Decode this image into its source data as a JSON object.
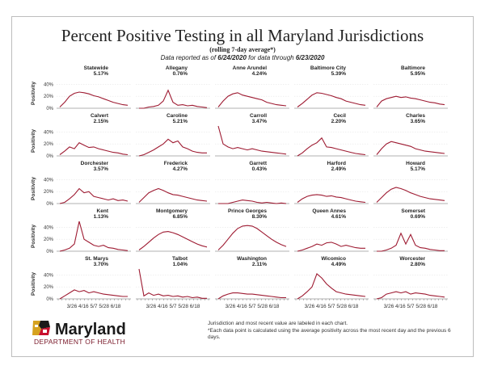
{
  "title": "Percent Positive Testing in all Maryland Jurisdictions",
  "subtitle": "(rolling 7-day average*)",
  "reported_prefix": "Data reported as of ",
  "reported_date": "6/24/2020",
  "reported_mid": " for data through ",
  "through_date": "6/23/2020",
  "y_axis_label": "Positivity",
  "y_ticks": [
    "0%",
    "20%",
    "40%"
  ],
  "x_ticks": [
    "3/26",
    "4/16",
    "5/7",
    "5/28",
    "6/18"
  ],
  "logo_text": "Maryland",
  "department": "DEPARTMENT OF HEALTH",
  "note_1": "Jurisdiction and most recent value are labeled in each chart.",
  "note_2": "*Each data point is calculated using the average positivity across the most recent day and the previous 6 days.",
  "colors": {
    "line": "#9e1b32",
    "grid": "#e6e6e6",
    "axis": "#555555"
  },
  "chart_data": {
    "type": "line",
    "layout": "small-multiples",
    "ylim": [
      0,
      0.5
    ],
    "x_range": [
      "3/19/2020",
      "6/23/2020"
    ],
    "panels": [
      {
        "name": "Statewide",
        "value": "5.17%",
        "series": [
          0.02,
          0.1,
          0.2,
          0.25,
          0.27,
          0.26,
          0.24,
          0.21,
          0.19,
          0.16,
          0.13,
          0.1,
          0.08,
          0.06,
          0.05
        ]
      },
      {
        "name": "Allegany",
        "value": "0.76%",
        "series": [
          0.0,
          0.0,
          0.02,
          0.03,
          0.05,
          0.12,
          0.3,
          0.1,
          0.05,
          0.06,
          0.04,
          0.05,
          0.03,
          0.02,
          0.01
        ]
      },
      {
        "name": "Anne Arundel",
        "value": "4.24%",
        "series": [
          0.02,
          0.12,
          0.2,
          0.24,
          0.26,
          0.22,
          0.2,
          0.18,
          0.16,
          0.14,
          0.1,
          0.08,
          0.06,
          0.05,
          0.04
        ]
      },
      {
        "name": "Baltimore City",
        "value": "5.39%",
        "series": [
          0.02,
          0.08,
          0.15,
          0.22,
          0.26,
          0.25,
          0.23,
          0.21,
          0.18,
          0.16,
          0.12,
          0.1,
          0.08,
          0.06,
          0.05
        ]
      },
      {
        "name": "Baltimore",
        "value": "5.95%",
        "series": [
          0.02,
          0.12,
          0.16,
          0.18,
          0.2,
          0.18,
          0.19,
          0.17,
          0.16,
          0.14,
          0.12,
          0.1,
          0.09,
          0.07,
          0.06
        ]
      },
      {
        "name": "Calvert",
        "value": "2.15%",
        "series": [
          0.02,
          0.08,
          0.15,
          0.12,
          0.22,
          0.18,
          0.14,
          0.15,
          0.12,
          0.1,
          0.08,
          0.06,
          0.05,
          0.03,
          0.02
        ]
      },
      {
        "name": "Caroline",
        "value": "5.21%",
        "series": [
          0.0,
          0.02,
          0.06,
          0.1,
          0.15,
          0.2,
          0.28,
          0.22,
          0.25,
          0.15,
          0.12,
          0.08,
          0.06,
          0.05,
          0.05
        ]
      },
      {
        "name": "Carroll",
        "value": "3.47%",
        "series": [
          0.55,
          0.2,
          0.15,
          0.12,
          0.14,
          0.12,
          0.1,
          0.12,
          0.1,
          0.08,
          0.07,
          0.06,
          0.05,
          0.04,
          0.03
        ]
      },
      {
        "name": "Cecil",
        "value": "2.20%",
        "series": [
          0.0,
          0.05,
          0.12,
          0.18,
          0.22,
          0.3,
          0.15,
          0.14,
          0.12,
          0.1,
          0.08,
          0.06,
          0.04,
          0.03,
          0.02
        ]
      },
      {
        "name": "Charles",
        "value": "3.65%",
        "series": [
          0.02,
          0.12,
          0.2,
          0.24,
          0.22,
          0.2,
          0.18,
          0.16,
          0.12,
          0.1,
          0.08,
          0.07,
          0.06,
          0.05,
          0.04
        ]
      },
      {
        "name": "Dorchester",
        "value": "3.57%",
        "series": [
          0.0,
          0.02,
          0.08,
          0.15,
          0.25,
          0.18,
          0.2,
          0.12,
          0.1,
          0.08,
          0.06,
          0.08,
          0.05,
          0.06,
          0.04
        ]
      },
      {
        "name": "Frederick",
        "value": "4.27%",
        "series": [
          0.02,
          0.1,
          0.18,
          0.22,
          0.25,
          0.22,
          0.18,
          0.15,
          0.14,
          0.12,
          0.1,
          0.08,
          0.06,
          0.05,
          0.04
        ]
      },
      {
        "name": "Garrett",
        "value": "0.43%",
        "series": [
          0.0,
          0.0,
          0.0,
          0.02,
          0.04,
          0.06,
          0.05,
          0.04,
          0.02,
          0.01,
          0.02,
          0.01,
          0.0,
          0.01,
          0.0
        ]
      },
      {
        "name": "Harford",
        "value": "2.49%",
        "series": [
          0.02,
          0.08,
          0.12,
          0.14,
          0.15,
          0.14,
          0.12,
          0.13,
          0.11,
          0.1,
          0.08,
          0.06,
          0.04,
          0.03,
          0.02
        ]
      },
      {
        "name": "Howard",
        "value": "5.17%",
        "series": [
          0.02,
          0.1,
          0.18,
          0.24,
          0.27,
          0.25,
          0.22,
          0.18,
          0.15,
          0.12,
          0.1,
          0.08,
          0.07,
          0.06,
          0.05
        ]
      },
      {
        "name": "Kent",
        "value": "1.13%",
        "series": [
          0.0,
          0.02,
          0.05,
          0.12,
          0.5,
          0.2,
          0.15,
          0.1,
          0.08,
          0.1,
          0.06,
          0.05,
          0.03,
          0.02,
          0.01
        ]
      },
      {
        "name": "Montgomery",
        "value": "6.85%",
        "series": [
          0.02,
          0.08,
          0.15,
          0.22,
          0.28,
          0.32,
          0.33,
          0.31,
          0.28,
          0.24,
          0.2,
          0.16,
          0.12,
          0.09,
          0.07
        ]
      },
      {
        "name": "Prince Georges",
        "value": "8.30%",
        "series": [
          0.02,
          0.1,
          0.2,
          0.3,
          0.38,
          0.42,
          0.43,
          0.42,
          0.38,
          0.32,
          0.26,
          0.2,
          0.15,
          0.11,
          0.08
        ]
      },
      {
        "name": "Queen Annes",
        "value": "4.61%",
        "series": [
          0.0,
          0.02,
          0.05,
          0.08,
          0.12,
          0.1,
          0.14,
          0.15,
          0.12,
          0.08,
          0.1,
          0.08,
          0.06,
          0.05,
          0.05
        ]
      },
      {
        "name": "Somerset",
        "value": "0.69%",
        "series": [
          0.0,
          0.0,
          0.02,
          0.05,
          0.1,
          0.3,
          0.12,
          0.28,
          0.1,
          0.06,
          0.05,
          0.03,
          0.02,
          0.01,
          0.01
        ]
      },
      {
        "name": "St. Marys",
        "value": "3.70%",
        "series": [
          0.0,
          0.05,
          0.1,
          0.15,
          0.12,
          0.14,
          0.1,
          0.12,
          0.1,
          0.08,
          0.07,
          0.06,
          0.05,
          0.04,
          0.04
        ]
      },
      {
        "name": "Talbot",
        "value": "1.04%",
        "series": [
          0.55,
          0.05,
          0.1,
          0.06,
          0.08,
          0.05,
          0.06,
          0.04,
          0.05,
          0.03,
          0.04,
          0.02,
          0.03,
          0.01,
          0.01
        ]
      },
      {
        "name": "Washington",
        "value": "2.11%",
        "series": [
          0.0,
          0.05,
          0.08,
          0.1,
          0.1,
          0.09,
          0.08,
          0.08,
          0.07,
          0.06,
          0.05,
          0.04,
          0.03,
          0.02,
          0.02
        ]
      },
      {
        "name": "Wicomico",
        "value": "4.49%",
        "series": [
          0.0,
          0.05,
          0.12,
          0.2,
          0.42,
          0.35,
          0.25,
          0.18,
          0.12,
          0.1,
          0.08,
          0.07,
          0.06,
          0.05,
          0.04
        ]
      },
      {
        "name": "Worcester",
        "value": "2.80%",
        "series": [
          0.0,
          0.02,
          0.08,
          0.1,
          0.12,
          0.1,
          0.12,
          0.08,
          0.1,
          0.09,
          0.08,
          0.06,
          0.05,
          0.04,
          0.03
        ]
      }
    ]
  }
}
